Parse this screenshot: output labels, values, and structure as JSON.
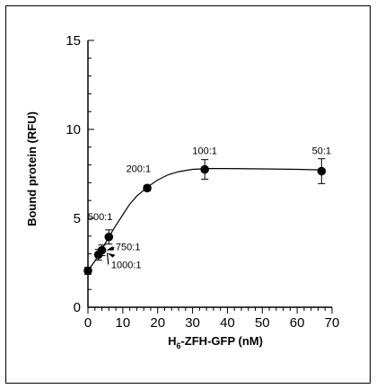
{
  "chart_data": {
    "type": "scatter",
    "xlabel": {
      "main": "H",
      "sub": "6",
      "rest": "-ZFH-GFP  (nM)"
    },
    "ylabel": "Bound protein (RFU)",
    "xlim": [
      0,
      70
    ],
    "ylim": [
      0,
      15
    ],
    "x_ticks": [
      0,
      10,
      20,
      30,
      40,
      50,
      60,
      70
    ],
    "y_ticks": [
      0,
      5,
      10,
      15
    ],
    "grid": false,
    "series": [
      {
        "points": [
          {
            "x": 0,
            "y": 2.05,
            "err": 0.2
          },
          {
            "x": 3,
            "y": 2.95,
            "err": 0.3
          },
          {
            "x": 4,
            "y": 3.2,
            "err": 0.3
          },
          {
            "x": 6,
            "y": 3.95,
            "err": 0.4
          },
          {
            "x": 17,
            "y": 6.7,
            "err": 0.15
          },
          {
            "x": 33.5,
            "y": 7.75,
            "err": 0.55
          },
          {
            "x": 67,
            "y": 7.65,
            "err": 0.7
          }
        ],
        "fit_curve": [
          [
            0,
            2.05
          ],
          [
            2,
            2.6
          ],
          [
            4,
            3.25
          ],
          [
            6,
            3.95
          ],
          [
            8,
            4.6
          ],
          [
            10,
            5.2
          ],
          [
            12,
            5.8
          ],
          [
            14,
            6.25
          ],
          [
            17,
            6.75
          ],
          [
            20,
            7.15
          ],
          [
            23,
            7.45
          ],
          [
            26,
            7.62
          ],
          [
            30,
            7.75
          ],
          [
            35,
            7.8
          ],
          [
            40,
            7.8
          ],
          [
            50,
            7.78
          ],
          [
            60,
            7.75
          ],
          [
            67,
            7.72
          ]
        ]
      }
    ],
    "annotations": [
      {
        "text": "50:1",
        "x": 67,
        "y": 8.6
      },
      {
        "text": "100:1",
        "x": 33.5,
        "y": 8.6
      },
      {
        "text": "200:1",
        "x": 14.5,
        "y": 7.6
      },
      {
        "text": "500:1",
        "x": 3.5,
        "y": 4.9
      },
      {
        "text": "750:1",
        "x": 11.5,
        "y": 3.2
      },
      {
        "text": "1000:1",
        "x": 11,
        "y": 2.2
      }
    ]
  }
}
